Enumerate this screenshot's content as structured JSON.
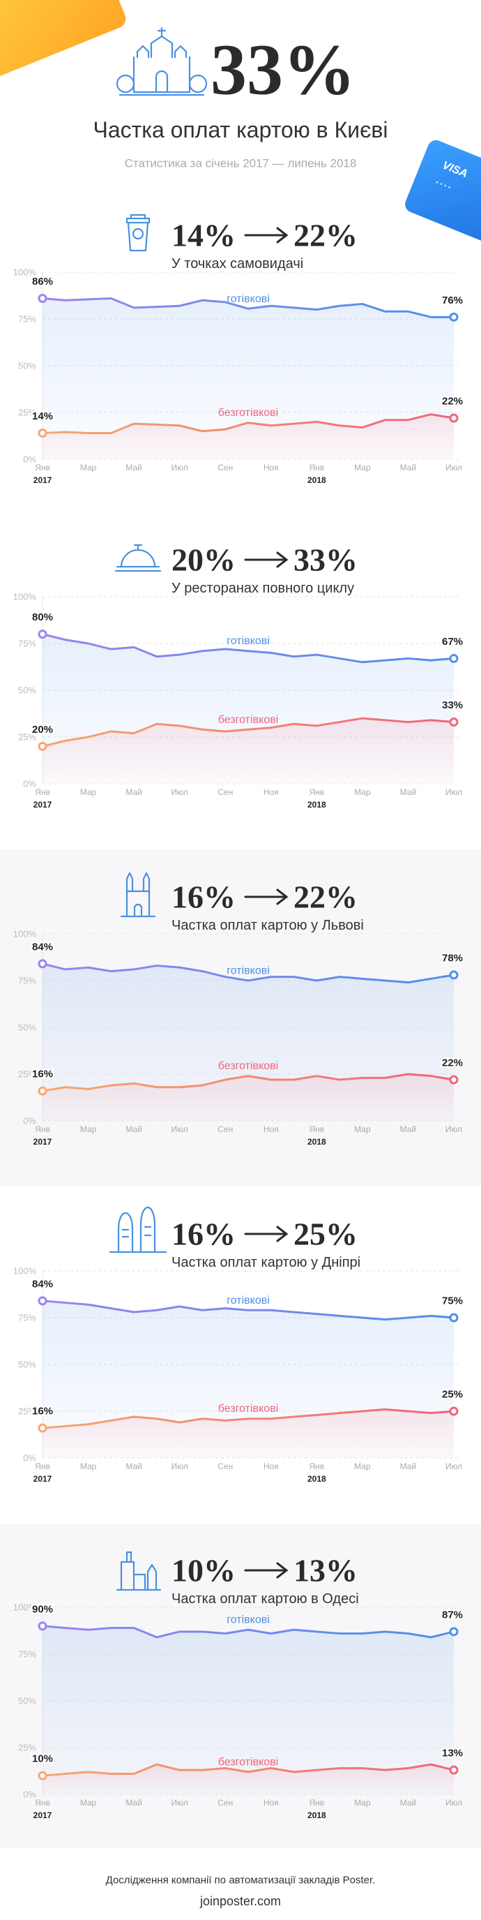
{
  "header": {
    "big": "33%",
    "title": "Частка оплат картою в Києві",
    "subtitle": "Статистика за січень 2017 — липень 2018",
    "card_brand": "VISA"
  },
  "chart_data": [
    {
      "type": "line",
      "headline": {
        "from": "14%",
        "to": "22%"
      },
      "subtitle": "У точках самовидачі",
      "categories": [
        "Янв",
        null,
        "Мар",
        null,
        "Май",
        null,
        "Июл",
        null,
        "Сен",
        null,
        "Ноя",
        null,
        "Янв",
        null,
        "Мар",
        null,
        "Май",
        null,
        "Июл"
      ],
      "years": [
        "2017",
        null,
        null,
        null,
        null,
        null,
        null,
        null,
        null,
        null,
        null,
        null,
        "2018",
        null,
        null,
        null,
        null,
        null,
        null
      ],
      "ylim": [
        0,
        100
      ],
      "yticks": [
        {
          "value": 0,
          "label": "0%"
        },
        {
          "value": 25,
          "label": "25%"
        },
        {
          "value": 50,
          "label": "50%"
        },
        {
          "value": 75,
          "label": "75%"
        },
        {
          "value": 100,
          "label": "100%"
        }
      ],
      "grid": true,
      "series": [
        {
          "name": "готівкові",
          "color": "#9a84f0",
          "color_end": "#4f8fea",
          "values": [
            86,
            85,
            85.5,
            86,
            81,
            81.5,
            82,
            85,
            84,
            80.5,
            82,
            81,
            80,
            82,
            83,
            79,
            79,
            76,
            76
          ],
          "value_labels": [
            "86%",
            null,
            null,
            null,
            null,
            null,
            null,
            null,
            null,
            null,
            null,
            null,
            null,
            null,
            null,
            null,
            null,
            null,
            "76%"
          ]
        },
        {
          "name": "безготівкові",
          "color": "#f7a76e",
          "color_end": "#f0647a",
          "values": [
            14,
            14.5,
            14,
            14,
            19,
            18.5,
            18,
            15,
            16,
            19.5,
            18,
            19,
            20,
            18,
            17,
            21,
            21,
            24,
            22
          ],
          "value_labels": [
            "14%",
            null,
            null,
            null,
            null,
            null,
            null,
            null,
            null,
            null,
            null,
            null,
            null,
            null,
            null,
            null,
            null,
            null,
            "22%"
          ]
        }
      ]
    },
    {
      "type": "line",
      "headline": {
        "from": "20%",
        "to": "33%"
      },
      "subtitle": "У ресторанах повного циклу",
      "categories": [
        "Янв",
        null,
        "Мар",
        null,
        "Май",
        null,
        "Июл",
        null,
        "Сен",
        null,
        "Ноя",
        null,
        "Янв",
        null,
        "Мар",
        null,
        "Май",
        null,
        "Июл"
      ],
      "years": [
        "2017",
        null,
        null,
        null,
        null,
        null,
        null,
        null,
        null,
        null,
        null,
        null,
        "2018",
        null,
        null,
        null,
        null,
        null,
        null
      ],
      "ylim": [
        0,
        100
      ],
      "yticks": [
        {
          "value": 0,
          "label": "0%"
        },
        {
          "value": 25,
          "label": "25%"
        },
        {
          "value": 50,
          "label": "50%"
        },
        {
          "value": 75,
          "label": "75%"
        },
        {
          "value": 100,
          "label": "100%"
        }
      ],
      "grid": true,
      "series": [
        {
          "name": "готівкові",
          "color": "#9a84f0",
          "color_end": "#4f8fea",
          "values": [
            80,
            77,
            75,
            72,
            73,
            68,
            69,
            71,
            72,
            71,
            70,
            68,
            69,
            67,
            65,
            66,
            67,
            66,
            67
          ],
          "value_labels": [
            "80%",
            null,
            null,
            null,
            null,
            null,
            null,
            null,
            null,
            null,
            null,
            null,
            null,
            null,
            null,
            null,
            null,
            null,
            "67%"
          ]
        },
        {
          "name": "безготівкові",
          "color": "#f7a76e",
          "color_end": "#f0647a",
          "values": [
            20,
            23,
            25,
            28,
            27,
            32,
            31,
            29,
            28,
            29,
            30,
            32,
            31,
            33,
            35,
            34,
            33,
            34,
            33
          ],
          "value_labels": [
            "20%",
            null,
            null,
            null,
            null,
            null,
            null,
            null,
            null,
            null,
            null,
            null,
            null,
            null,
            null,
            null,
            null,
            null,
            "33%"
          ]
        }
      ]
    },
    {
      "type": "line",
      "headline": {
        "from": "16%",
        "to": "22%"
      },
      "subtitle": "Частка оплат картою у Львові",
      "categories": [
        "Янв",
        null,
        "Мар",
        null,
        "Май",
        null,
        "Июл",
        null,
        "Сен",
        null,
        "Ноя",
        null,
        "Янв",
        null,
        "Мар",
        null,
        "Май",
        null,
        "Июл"
      ],
      "years": [
        "2017",
        null,
        null,
        null,
        null,
        null,
        null,
        null,
        null,
        null,
        null,
        null,
        "2018",
        null,
        null,
        null,
        null,
        null,
        null
      ],
      "ylim": [
        0,
        100
      ],
      "yticks": [
        {
          "value": 0,
          "label": "0%"
        },
        {
          "value": 25,
          "label": "25%"
        },
        {
          "value": 50,
          "label": "50%"
        },
        {
          "value": 75,
          "label": "75%"
        },
        {
          "value": 100,
          "label": "100%"
        }
      ],
      "grid": true,
      "series": [
        {
          "name": "готівкові",
          "color": "#9a84f0",
          "color_end": "#4f8fea",
          "values": [
            84,
            81,
            82,
            80,
            81,
            83,
            82,
            80,
            77,
            75,
            77,
            77,
            75,
            77,
            76,
            75,
            74,
            76,
            78
          ],
          "value_labels": [
            "84%",
            null,
            null,
            null,
            null,
            null,
            null,
            null,
            null,
            null,
            null,
            null,
            null,
            null,
            null,
            null,
            null,
            null,
            "78%"
          ]
        },
        {
          "name": "безготівкові",
          "color": "#f7a76e",
          "color_end": "#f0647a",
          "values": [
            16,
            18,
            17,
            19,
            20,
            18,
            18,
            19,
            22,
            24,
            22,
            22,
            24,
            22,
            23,
            23,
            25,
            24,
            22
          ],
          "value_labels": [
            "16%",
            null,
            null,
            null,
            null,
            null,
            null,
            null,
            null,
            null,
            null,
            null,
            null,
            null,
            null,
            null,
            null,
            null,
            "22%"
          ]
        }
      ]
    },
    {
      "type": "line",
      "headline": {
        "from": "16%",
        "to": "25%"
      },
      "subtitle": "Частка оплат картою у Дніпрі",
      "categories": [
        "Янв",
        null,
        "Мар",
        null,
        "Май",
        null,
        "Июл",
        null,
        "Сен",
        null,
        "Ноя",
        null,
        "Янв",
        null,
        "Мар",
        null,
        "Май",
        null,
        "Июл"
      ],
      "years": [
        "2017",
        null,
        null,
        null,
        null,
        null,
        null,
        null,
        null,
        null,
        null,
        null,
        "2018",
        null,
        null,
        null,
        null,
        null,
        null
      ],
      "ylim": [
        0,
        100
      ],
      "yticks": [
        {
          "value": 0,
          "label": "0%"
        },
        {
          "value": 25,
          "label": "25%"
        },
        {
          "value": 50,
          "label": "50%"
        },
        {
          "value": 75,
          "label": "75%"
        },
        {
          "value": 100,
          "label": "100%"
        }
      ],
      "grid": true,
      "series": [
        {
          "name": "готівкові",
          "color": "#9a84f0",
          "color_end": "#4f8fea",
          "values": [
            84,
            83,
            82,
            80,
            78,
            79,
            81,
            79,
            80,
            79,
            79,
            78,
            77,
            76,
            75,
            74,
            75,
            76,
            75
          ],
          "value_labels": [
            "84%",
            null,
            null,
            null,
            null,
            null,
            null,
            null,
            null,
            null,
            null,
            null,
            null,
            null,
            null,
            null,
            null,
            null,
            "75%"
          ]
        },
        {
          "name": "безготівкові",
          "color": "#f7a76e",
          "color_end": "#f0647a",
          "values": [
            16,
            17,
            18,
            20,
            22,
            21,
            19,
            21,
            20,
            21,
            21,
            22,
            23,
            24,
            25,
            26,
            25,
            24,
            25
          ],
          "value_labels": [
            "16%",
            null,
            null,
            null,
            null,
            null,
            null,
            null,
            null,
            null,
            null,
            null,
            null,
            null,
            null,
            null,
            null,
            null,
            "25%"
          ]
        }
      ]
    },
    {
      "type": "line",
      "headline": {
        "from": "10%",
        "to": "13%"
      },
      "subtitle": "Частка оплат картою в Одесі",
      "categories": [
        "Янв",
        null,
        "Мар",
        null,
        "Май",
        null,
        "Июл",
        null,
        "Сен",
        null,
        "Ноя",
        null,
        "Янв",
        null,
        "Мар",
        null,
        "Май",
        null,
        "Июл"
      ],
      "years": [
        "2017",
        null,
        null,
        null,
        null,
        null,
        null,
        null,
        null,
        null,
        null,
        null,
        "2018",
        null,
        null,
        null,
        null,
        null,
        null
      ],
      "ylim": [
        0,
        100
      ],
      "yticks": [
        {
          "value": 0,
          "label": "0%"
        },
        {
          "value": 25,
          "label": "25%"
        },
        {
          "value": 50,
          "label": "50%"
        },
        {
          "value": 75,
          "label": "75%"
        },
        {
          "value": 100,
          "label": "100%"
        }
      ],
      "grid": true,
      "series": [
        {
          "name": "готівкові",
          "color": "#9a84f0",
          "color_end": "#4f8fea",
          "values": [
            90,
            89,
            88,
            89,
            89,
            84,
            87,
            87,
            86,
            88,
            86,
            88,
            87,
            86,
            86,
            87,
            86,
            84,
            87
          ],
          "value_labels": [
            "90%",
            null,
            null,
            null,
            null,
            null,
            null,
            null,
            null,
            null,
            null,
            null,
            null,
            null,
            null,
            null,
            null,
            null,
            "87%"
          ]
        },
        {
          "name": "безготівкові",
          "color": "#f7a76e",
          "color_end": "#f0647a",
          "values": [
            10,
            11,
            12,
            11,
            11,
            16,
            13,
            13,
            14,
            12,
            14,
            12,
            13,
            14,
            14,
            13,
            14,
            16,
            13
          ],
          "value_labels": [
            "10%",
            null,
            null,
            null,
            null,
            null,
            null,
            null,
            null,
            null,
            null,
            null,
            null,
            null,
            null,
            null,
            null,
            null,
            "13%"
          ]
        }
      ]
    }
  ],
  "footer": {
    "text": "Дослідження компанії по автоматизації закладів Poster.",
    "url": "joinposter.com"
  }
}
